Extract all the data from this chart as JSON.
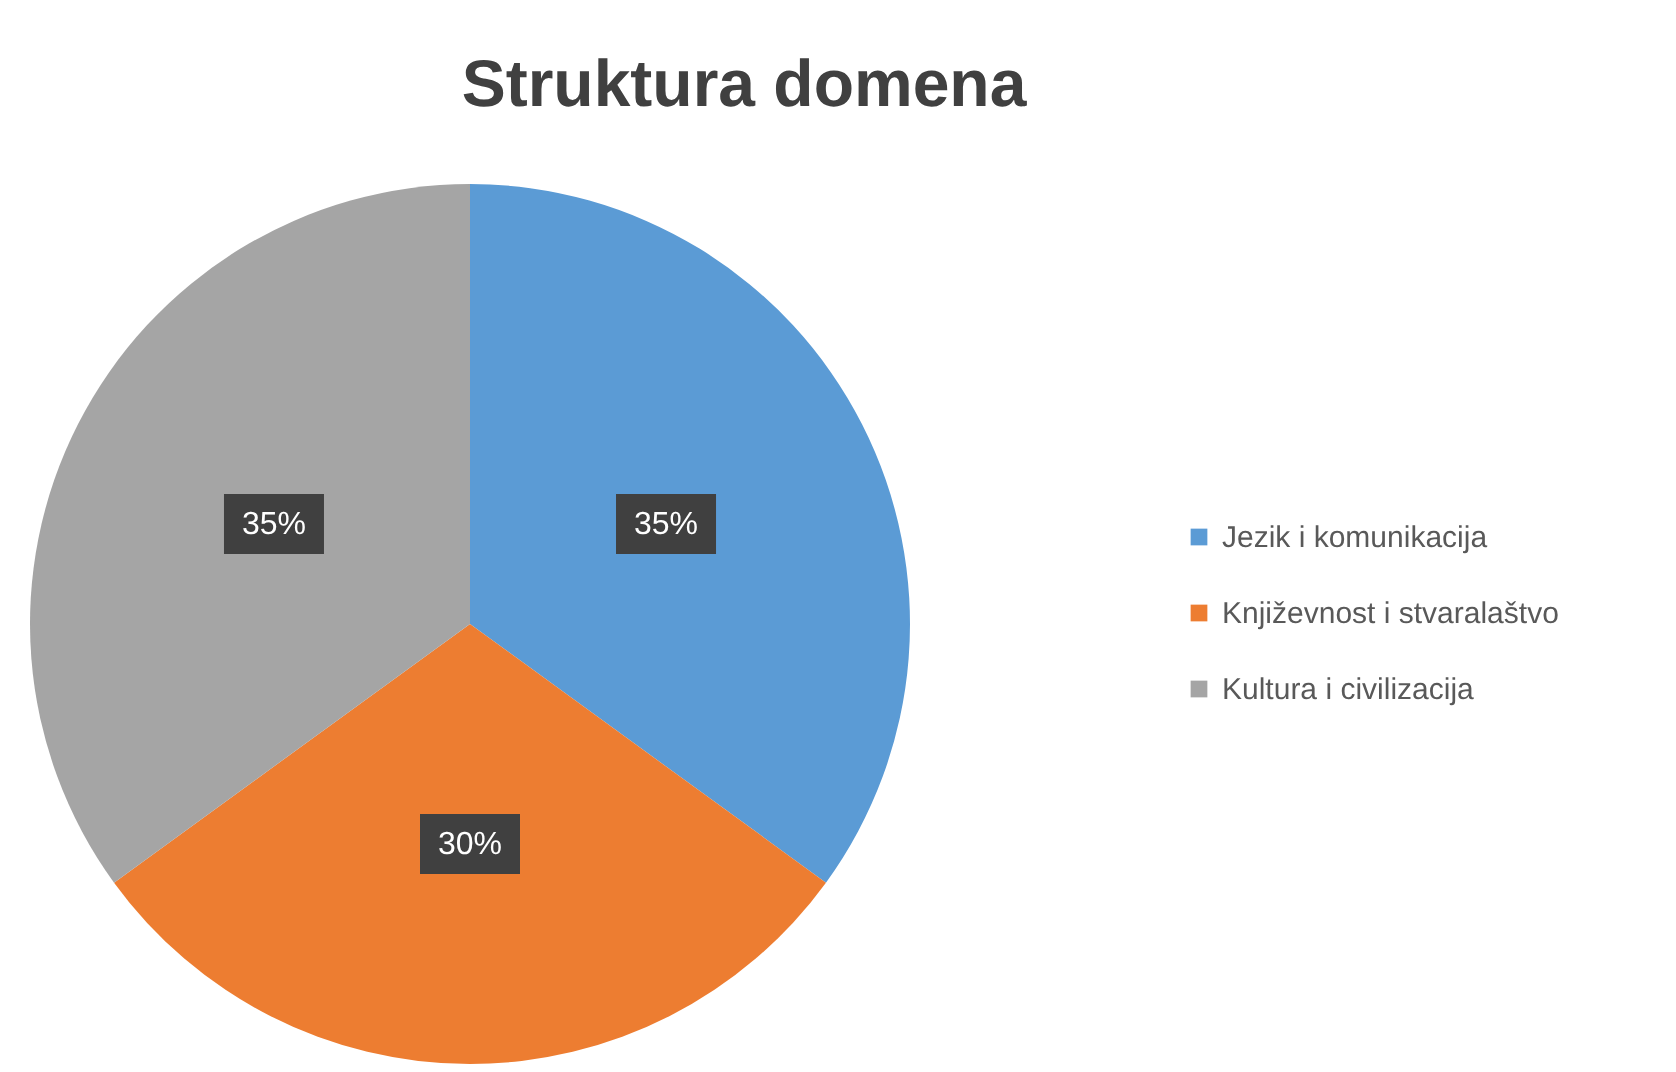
{
  "chart_data": {
    "type": "pie",
    "title": "Struktura domena",
    "categories": [
      "Jezik i komunikacija",
      "Književnost i stvaralaštvo",
      "Kultura i civilizacija"
    ],
    "values": [
      35,
      30,
      35
    ],
    "colors": [
      "#5b9bd5",
      "#ed7d31",
      "#a5a5a5"
    ],
    "value_labels": [
      "35%",
      "30%",
      "35%"
    ],
    "legend": "right"
  }
}
